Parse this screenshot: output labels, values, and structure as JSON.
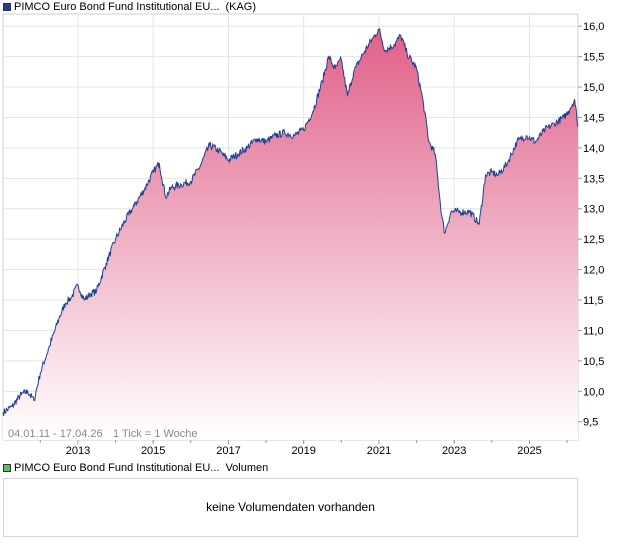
{
  "legend_price": {
    "name": "PIMCO Euro Bond Fund Institutional EU...",
    "tag": "(KAG)",
    "color": "#1f3f8f"
  },
  "legend_volume": {
    "name": "PIMCO Euro Bond Fund Institutional EU...",
    "tag": "Volumen",
    "color": "#5dbf5d"
  },
  "footnote": {
    "range": "04.01.11 - 17.04.26",
    "tick": "1 Tick = 1 Woche"
  },
  "volume_message": "keine Volumendaten vorhanden",
  "colors": {
    "line": "#1f3f8f",
    "fill_top": "#e06088",
    "fill_bottom": "#ffffff",
    "grid": "#e4e4e4",
    "axis": "#9a9a9a"
  },
  "chart_data": {
    "type": "area",
    "x_start": "2011-01-04",
    "x_end": "2026-04-17",
    "x_ticks": [
      "2013",
      "2015",
      "2017",
      "2019",
      "2021",
      "2023",
      "2025"
    ],
    "y_ticks": [
      "9,5",
      "10,0",
      "10,5",
      "11,0",
      "11,5",
      "12,0",
      "12,5",
      "13,0",
      "13,5",
      "14,0",
      "14,5",
      "15,0",
      "15,5",
      "16,0"
    ],
    "ylim": [
      9.2,
      16.2
    ],
    "grid": true,
    "series": [
      {
        "name": "PIMCO Euro Bond Fund Institutional EU...",
        "points": [
          [
            "2011-01-04",
            9.65
          ],
          [
            "2011-04-01",
            9.75
          ],
          [
            "2011-07-01",
            9.95
          ],
          [
            "2011-09-01",
            10.0
          ],
          [
            "2011-11-01",
            9.85
          ],
          [
            "2012-01-01",
            10.3
          ],
          [
            "2012-04-01",
            10.75
          ],
          [
            "2012-07-01",
            11.2
          ],
          [
            "2012-09-01",
            11.45
          ],
          [
            "2012-11-01",
            11.55
          ],
          [
            "2013-01-01",
            11.75
          ],
          [
            "2013-03-01",
            11.5
          ],
          [
            "2013-05-01",
            11.6
          ],
          [
            "2013-07-01",
            11.65
          ],
          [
            "2013-10-01",
            12.1
          ],
          [
            "2014-01-01",
            12.5
          ],
          [
            "2014-04-01",
            12.8
          ],
          [
            "2014-07-01",
            13.05
          ],
          [
            "2014-10-01",
            13.3
          ],
          [
            "2015-01-01",
            13.6
          ],
          [
            "2015-03-01",
            13.75
          ],
          [
            "2015-05-01",
            13.2
          ],
          [
            "2015-07-01",
            13.35
          ],
          [
            "2015-10-01",
            13.4
          ],
          [
            "2016-01-01",
            13.45
          ],
          [
            "2016-04-01",
            13.7
          ],
          [
            "2016-07-01",
            14.05
          ],
          [
            "2016-10-01",
            13.95
          ],
          [
            "2017-01-01",
            13.8
          ],
          [
            "2017-04-01",
            13.9
          ],
          [
            "2017-07-01",
            14.0
          ],
          [
            "2017-10-01",
            14.15
          ],
          [
            "2018-01-01",
            14.1
          ],
          [
            "2018-04-01",
            14.2
          ],
          [
            "2018-07-01",
            14.25
          ],
          [
            "2018-10-01",
            14.2
          ],
          [
            "2019-01-01",
            14.3
          ],
          [
            "2019-04-01",
            14.6
          ],
          [
            "2019-07-01",
            15.1
          ],
          [
            "2019-09-01",
            15.5
          ],
          [
            "2019-11-01",
            15.3
          ],
          [
            "2020-01-01",
            15.45
          ],
          [
            "2020-03-01",
            14.85
          ],
          [
            "2020-05-01",
            15.25
          ],
          [
            "2020-08-01",
            15.55
          ],
          [
            "2020-11-01",
            15.8
          ],
          [
            "2021-01-01",
            15.95
          ],
          [
            "2021-03-01",
            15.6
          ],
          [
            "2021-06-01",
            15.7
          ],
          [
            "2021-08-01",
            15.85
          ],
          [
            "2021-10-01",
            15.55
          ],
          [
            "2022-01-01",
            15.3
          ],
          [
            "2022-03-01",
            14.8
          ],
          [
            "2022-05-01",
            14.1
          ],
          [
            "2022-07-01",
            13.9
          ],
          [
            "2022-09-01",
            12.9
          ],
          [
            "2022-10-01",
            12.6
          ],
          [
            "2022-12-01",
            12.95
          ],
          [
            "2023-03-01",
            12.95
          ],
          [
            "2023-06-01",
            12.95
          ],
          [
            "2023-09-01",
            12.75
          ],
          [
            "2023-11-01",
            13.55
          ],
          [
            "2024-01-01",
            13.6
          ],
          [
            "2024-03-01",
            13.55
          ],
          [
            "2024-06-01",
            13.75
          ],
          [
            "2024-09-01",
            14.1
          ],
          [
            "2024-12-01",
            14.2
          ],
          [
            "2025-03-01",
            14.1
          ],
          [
            "2025-06-01",
            14.3
          ],
          [
            "2025-09-01",
            14.4
          ],
          [
            "2025-12-01",
            14.5
          ],
          [
            "2026-02-01",
            14.65
          ],
          [
            "2026-03-15",
            14.8
          ],
          [
            "2026-04-17",
            14.35
          ]
        ]
      }
    ]
  }
}
